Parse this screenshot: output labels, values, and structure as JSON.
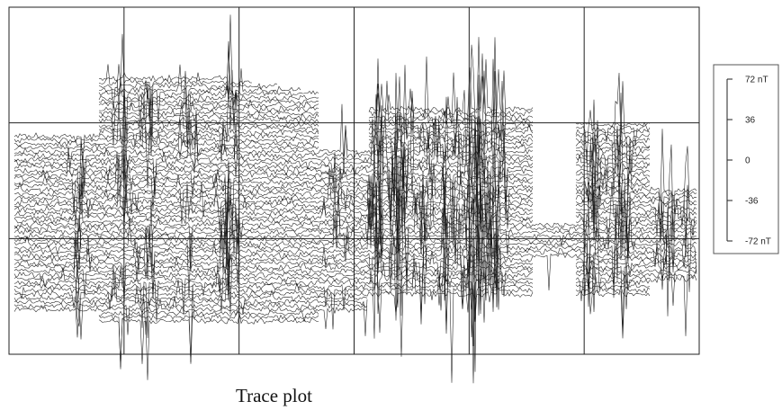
{
  "caption": "Trace plot",
  "chart_data": {
    "type": "line",
    "title": "",
    "xlabel": "",
    "ylabel": "",
    "grid": true,
    "grid_columns": 6,
    "grid_rows": 3,
    "trace_count": 70,
    "scale_bar": {
      "unit": "nT",
      "ticks": [
        {
          "value": 72,
          "label": "72 nT"
        },
        {
          "value": 36,
          "label": "36"
        },
        {
          "value": 0,
          "label": "0"
        },
        {
          "value": -36,
          "label": "-36"
        },
        {
          "value": -72,
          "label": "-72 nT"
        }
      ],
      "range": [
        -72,
        72
      ]
    },
    "trace_color": "#1a1a1a",
    "grid_color": "#222222"
  }
}
